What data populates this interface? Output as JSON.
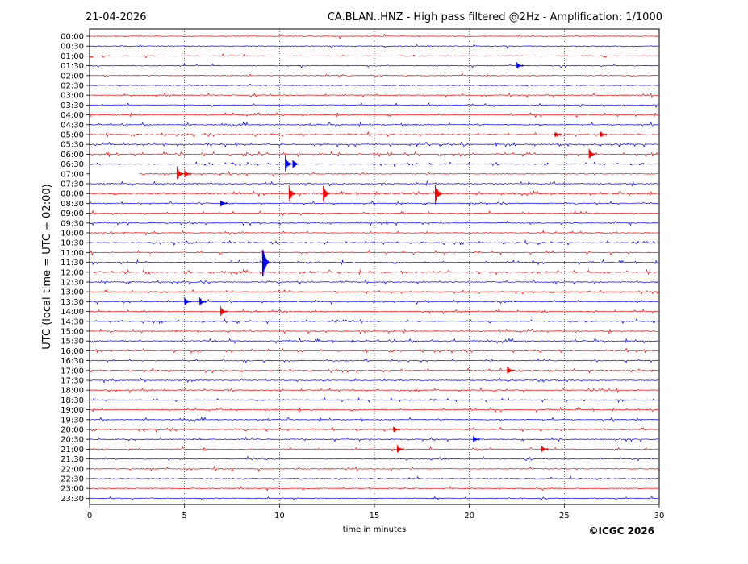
{
  "date": "21-04-2026",
  "chart_title": "CA.BLAN..HNZ - High pass filtered @2Hz - Amplification: 1/1000",
  "copyright": "©ICGC 2026",
  "chart_data": {
    "type": "line",
    "title": "CA.BLAN..HNZ - High pass filtered @2Hz - Amplification: 1/1000",
    "xlabel": "time in minutes",
    "ylabel": "UTC (local time = UTC + 02:00)",
    "xlim": [
      0,
      30
    ],
    "xticks": [
      "0",
      "5",
      "10",
      "15",
      "20",
      "25",
      "30"
    ],
    "grid": "vertical dotted lines at 5, 10, 15, 20, 25 minutes",
    "row_labels": [
      "00:00",
      "00:30",
      "01:00",
      "01:30",
      "02:00",
      "02:30",
      "03:00",
      "03:30",
      "04:00",
      "04:30",
      "05:00",
      "05:30",
      "06:00",
      "06:30",
      "07:00",
      "07:30",
      "08:00",
      "08:30",
      "09:00",
      "09:30",
      "10:00",
      "10:30",
      "11:00",
      "11:30",
      "12:00",
      "12:30",
      "13:00",
      "13:30",
      "14:00",
      "14:30",
      "15:00",
      "15:30",
      "16:00",
      "16:30",
      "17:00",
      "17:30",
      "18:00",
      "18:30",
      "19:00",
      "19:30",
      "20:00",
      "20:30",
      "21:00",
      "21:30",
      "22:00",
      "22:30",
      "23:00",
      "23:30"
    ],
    "trace_colors": [
      "#ff0000",
      "#0000ff"
    ],
    "activity": [
      0.1,
      0.15,
      0.15,
      0.15,
      0.15,
      0.1,
      0.25,
      0.45,
      0.5,
      0.55,
      0.6,
      0.95,
      1.0,
      0.6,
      0.15,
      0.55,
      0.6,
      0.5,
      0.6,
      0.5,
      0.45,
      0.6,
      0.55,
      0.6,
      0.6,
      0.55,
      0.55,
      0.5,
      0.55,
      0.6,
      0.6,
      0.65,
      0.65,
      0.55,
      0.55,
      0.55,
      0.6,
      0.55,
      0.55,
      0.5,
      0.5,
      0.4,
      0.35,
      0.25,
      0.25,
      0.2,
      0.15,
      0.15
    ],
    "events": [
      {
        "row": "01:30",
        "minute": 22.5,
        "amplitude": 0.4
      },
      {
        "row": "05:00",
        "minute": 24.5,
        "amplitude": 0.4
      },
      {
        "row": "05:00",
        "minute": 26.9,
        "amplitude": 0.4
      },
      {
        "row": "06:00",
        "minute": 26.3,
        "amplitude": 0.6
      },
      {
        "row": "06:30",
        "minute": 10.3,
        "amplitude": 0.9
      },
      {
        "row": "06:30",
        "minute": 10.7,
        "amplitude": 0.6
      },
      {
        "row": "07:00",
        "minute": 4.6,
        "amplitude": 0.8
      },
      {
        "row": "07:00",
        "minute": 5.0,
        "amplitude": 0.5
      },
      {
        "row": "08:00",
        "minute": 10.5,
        "amplitude": 1.0
      },
      {
        "row": "08:00",
        "minute": 12.3,
        "amplitude": 1.0
      },
      {
        "row": "08:00",
        "minute": 18.2,
        "amplitude": 1.4
      },
      {
        "row": "08:30",
        "minute": 6.9,
        "amplitude": 0.5
      },
      {
        "row": "11:30",
        "minute": 9.1,
        "amplitude": 2.2
      },
      {
        "row": "13:30",
        "minute": 5.0,
        "amplitude": 0.5
      },
      {
        "row": "13:30",
        "minute": 5.8,
        "amplitude": 0.5
      },
      {
        "row": "14:00",
        "minute": 6.9,
        "amplitude": 0.6
      },
      {
        "row": "17:00",
        "minute": 22.0,
        "amplitude": 0.5
      },
      {
        "row": "20:00",
        "minute": 16.0,
        "amplitude": 0.4
      },
      {
        "row": "20:30",
        "minute": 20.2,
        "amplitude": 0.4
      },
      {
        "row": "21:00",
        "minute": 16.2,
        "amplitude": 0.5
      },
      {
        "row": "21:00",
        "minute": 23.8,
        "amplitude": 0.4
      }
    ],
    "gaps": [
      {
        "row": "07:00",
        "from": 0.0,
        "to": 2.6
      }
    ]
  }
}
